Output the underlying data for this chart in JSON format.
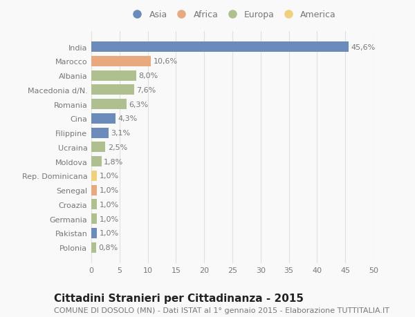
{
  "categories": [
    "India",
    "Marocco",
    "Albania",
    "Macedonia d/N.",
    "Romania",
    "Cina",
    "Filippine",
    "Ucraina",
    "Moldova",
    "Rep. Dominicana",
    "Senegal",
    "Croazia",
    "Germania",
    "Pakistan",
    "Polonia"
  ],
  "values": [
    45.6,
    10.6,
    8.0,
    7.6,
    6.3,
    4.3,
    3.1,
    2.5,
    1.8,
    1.0,
    1.0,
    1.0,
    1.0,
    1.0,
    0.8
  ],
  "continents": [
    "Asia",
    "Africa",
    "Europa",
    "Europa",
    "Europa",
    "Asia",
    "Asia",
    "Europa",
    "Europa",
    "America",
    "Africa",
    "Europa",
    "Europa",
    "Asia",
    "Europa"
  ],
  "continent_colors": {
    "Asia": "#6b8cba",
    "Africa": "#e8a97e",
    "Europa": "#b0bf8e",
    "America": "#f0d07a"
  },
  "labels": [
    "45,6%",
    "10,6%",
    "8,0%",
    "7,6%",
    "6,3%",
    "4,3%",
    "3,1%",
    "2,5%",
    "1,8%",
    "1,0%",
    "1,0%",
    "1,0%",
    "1,0%",
    "1,0%",
    "0,8%"
  ],
  "legend_order": [
    "Asia",
    "Africa",
    "Europa",
    "America"
  ],
  "xlim": [
    0,
    50
  ],
  "xticks": [
    0,
    5,
    10,
    15,
    20,
    25,
    30,
    35,
    40,
    45,
    50
  ],
  "title": "Cittadini Stranieri per Cittadinanza - 2015",
  "subtitle": "COMUNE DI DOSOLO (MN) - Dati ISTAT al 1° gennaio 2015 - Elaborazione TUTTITALIA.IT",
  "background_color": "#f9f9f9",
  "grid_color": "#e0e0e0",
  "bar_height": 0.72,
  "title_fontsize": 11,
  "subtitle_fontsize": 8,
  "label_fontsize": 8,
  "tick_fontsize": 8,
  "legend_fontsize": 9,
  "text_color": "#777777",
  "title_color": "#222222"
}
